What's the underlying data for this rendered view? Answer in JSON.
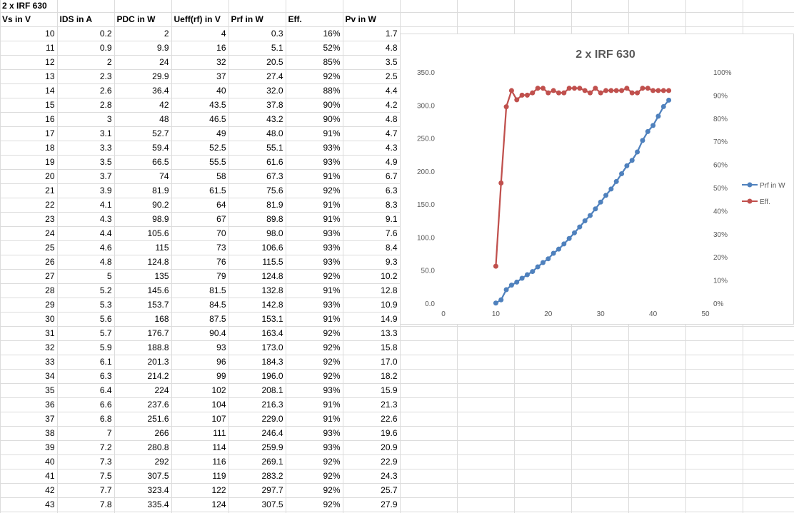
{
  "sheet": {
    "title": "2 x IRF 630",
    "headers": [
      "Vs in V",
      "IDS in A",
      "PDC in W",
      "Ueff(rf) in V",
      "Prf in W",
      "Eff.",
      "Pv in W"
    ],
    "rows": [
      [
        "10",
        "0.2",
        "2",
        "4",
        "0.3",
        "16%",
        "1.7"
      ],
      [
        "11",
        "0.9",
        "9.9",
        "16",
        "5.1",
        "52%",
        "4.8"
      ],
      [
        "12",
        "2",
        "24",
        "32",
        "20.5",
        "85%",
        "3.5"
      ],
      [
        "13",
        "2.3",
        "29.9",
        "37",
        "27.4",
        "92%",
        "2.5"
      ],
      [
        "14",
        "2.6",
        "36.4",
        "40",
        "32.0",
        "88%",
        "4.4"
      ],
      [
        "15",
        "2.8",
        "42",
        "43.5",
        "37.8",
        "90%",
        "4.2"
      ],
      [
        "16",
        "3",
        "48",
        "46.5",
        "43.2",
        "90%",
        "4.8"
      ],
      [
        "17",
        "3.1",
        "52.7",
        "49",
        "48.0",
        "91%",
        "4.7"
      ],
      [
        "18",
        "3.3",
        "59.4",
        "52.5",
        "55.1",
        "93%",
        "4.3"
      ],
      [
        "19",
        "3.5",
        "66.5",
        "55.5",
        "61.6",
        "93%",
        "4.9"
      ],
      [
        "20",
        "3.7",
        "74",
        "58",
        "67.3",
        "91%",
        "6.7"
      ],
      [
        "21",
        "3.9",
        "81.9",
        "61.5",
        "75.6",
        "92%",
        "6.3"
      ],
      [
        "22",
        "4.1",
        "90.2",
        "64",
        "81.9",
        "91%",
        "8.3"
      ],
      [
        "23",
        "4.3",
        "98.9",
        "67",
        "89.8",
        "91%",
        "9.1"
      ],
      [
        "24",
        "4.4",
        "105.6",
        "70",
        "98.0",
        "93%",
        "7.6"
      ],
      [
        "25",
        "4.6",
        "115",
        "73",
        "106.6",
        "93%",
        "8.4"
      ],
      [
        "26",
        "4.8",
        "124.8",
        "76",
        "115.5",
        "93%",
        "9.3"
      ],
      [
        "27",
        "5",
        "135",
        "79",
        "124.8",
        "92%",
        "10.2"
      ],
      [
        "28",
        "5.2",
        "145.6",
        "81.5",
        "132.8",
        "91%",
        "12.8"
      ],
      [
        "29",
        "5.3",
        "153.7",
        "84.5",
        "142.8",
        "93%",
        "10.9"
      ],
      [
        "30",
        "5.6",
        "168",
        "87.5",
        "153.1",
        "91%",
        "14.9"
      ],
      [
        "31",
        "5.7",
        "176.7",
        "90.4",
        "163.4",
        "92%",
        "13.3"
      ],
      [
        "32",
        "5.9",
        "188.8",
        "93",
        "173.0",
        "92%",
        "15.8"
      ],
      [
        "33",
        "6.1",
        "201.3",
        "96",
        "184.3",
        "92%",
        "17.0"
      ],
      [
        "34",
        "6.3",
        "214.2",
        "99",
        "196.0",
        "92%",
        "18.2"
      ],
      [
        "35",
        "6.4",
        "224",
        "102",
        "208.1",
        "93%",
        "15.9"
      ],
      [
        "36",
        "6.6",
        "237.6",
        "104",
        "216.3",
        "91%",
        "21.3"
      ],
      [
        "37",
        "6.8",
        "251.6",
        "107",
        "229.0",
        "91%",
        "22.6"
      ],
      [
        "38",
        "7",
        "266",
        "111",
        "246.4",
        "93%",
        "19.6"
      ],
      [
        "39",
        "7.2",
        "280.8",
        "114",
        "259.9",
        "93%",
        "20.9"
      ],
      [
        "40",
        "7.3",
        "292",
        "116",
        "269.1",
        "92%",
        "22.9"
      ],
      [
        "41",
        "7.5",
        "307.5",
        "119",
        "283.2",
        "92%",
        "24.3"
      ],
      [
        "42",
        "7.7",
        "323.4",
        "122",
        "297.7",
        "92%",
        "25.7"
      ],
      [
        "43",
        "7.8",
        "335.4",
        "124",
        "307.5",
        "92%",
        "27.9"
      ]
    ]
  },
  "chart_data": {
    "type": "line",
    "title": "2 x IRF 630",
    "xlim": [
      0,
      50
    ],
    "xticks": [
      "0",
      "10",
      "20",
      "30",
      "40",
      "50"
    ],
    "ylim": [
      0,
      350
    ],
    "yticks": [
      "0.0",
      "50.0",
      "100.0",
      "150.0",
      "200.0",
      "250.0",
      "300.0",
      "350.0"
    ],
    "y2lim": [
      0,
      100
    ],
    "y2ticks": [
      "0%",
      "10%",
      "20%",
      "30%",
      "40%",
      "50%",
      "60%",
      "70%",
      "80%",
      "90%",
      "100%"
    ],
    "x": [
      10,
      11,
      12,
      13,
      14,
      15,
      16,
      17,
      18,
      19,
      20,
      21,
      22,
      23,
      24,
      25,
      26,
      27,
      28,
      29,
      30,
      31,
      32,
      33,
      34,
      35,
      36,
      37,
      38,
      39,
      40,
      41,
      42,
      43
    ],
    "series": [
      {
        "name": "Prf in W",
        "axis": "left",
        "color": "#4f81bd",
        "values": [
          0.3,
          5.1,
          20.5,
          27.4,
          32.0,
          37.8,
          43.2,
          48.0,
          55.1,
          61.6,
          67.3,
          75.6,
          81.9,
          89.8,
          98.0,
          106.6,
          115.5,
          124.8,
          132.8,
          142.8,
          153.1,
          163.4,
          173.0,
          184.3,
          196.0,
          208.1,
          216.3,
          229.0,
          246.4,
          259.9,
          269.1,
          283.2,
          297.7,
          307.5
        ]
      },
      {
        "name": "Eff.",
        "axis": "right",
        "color": "#c0504d",
        "values": [
          16,
          52,
          85,
          92,
          88,
          90,
          90,
          91,
          93,
          93,
          91,
          92,
          91,
          91,
          93,
          93,
          93,
          92,
          91,
          93,
          91,
          92,
          92,
          92,
          92,
          93,
          91,
          91,
          93,
          93,
          92,
          92,
          92,
          92
        ]
      }
    ],
    "legend": "right",
    "gridlines": false
  }
}
